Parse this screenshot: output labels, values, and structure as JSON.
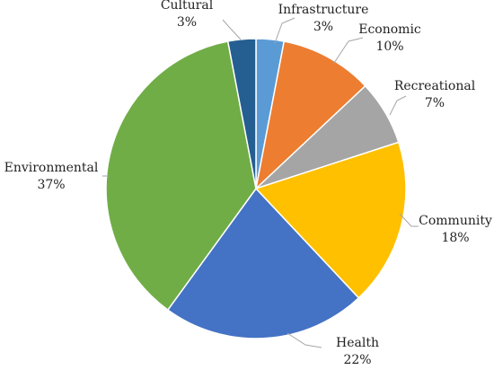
{
  "chart_data": {
    "type": "pie",
    "title": "",
    "slices": [
      {
        "label": "Infrastructure",
        "value": 3,
        "value_label": "3%",
        "color": "#5b9bd5"
      },
      {
        "label": "Economic",
        "value": 10,
        "value_label": "10%",
        "color": "#ed7d31"
      },
      {
        "label": "Recreational",
        "value": 7,
        "value_label": "7%",
        "color": "#a5a5a5"
      },
      {
        "label": "Community",
        "value": 18,
        "value_label": "18%",
        "color": "#ffc000"
      },
      {
        "label": "Health",
        "value": 22,
        "value_label": "22%",
        "color": "#4472c4"
      },
      {
        "label": "Environmental",
        "value": 37,
        "value_label": "37%",
        "color": "#70ad47"
      },
      {
        "label": "Cultural",
        "value": 3,
        "value_label": "3%",
        "color": "#255e91"
      }
    ],
    "start_angle": "12 o'clock",
    "direction": "clockwise",
    "legend": "none",
    "data_labels": "outside-with-leader-lines"
  }
}
